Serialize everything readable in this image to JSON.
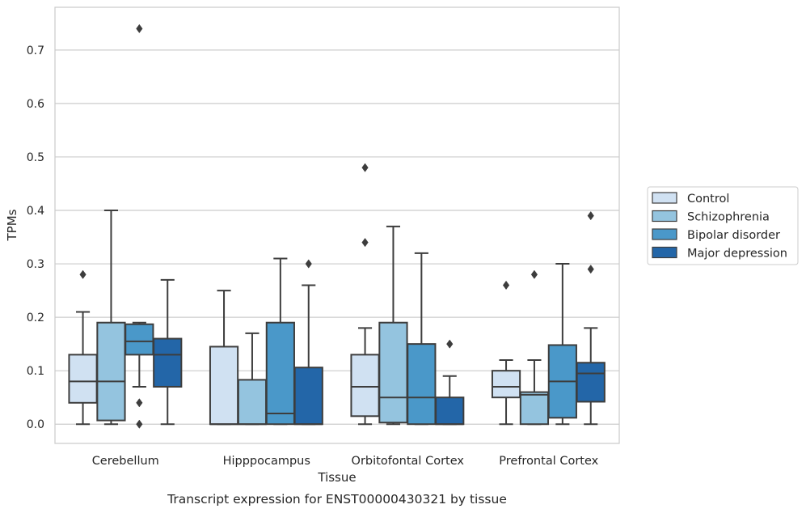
{
  "chart_data": {
    "type": "box",
    "title": "Transcript expression for ENST00000430321 by tissue",
    "xlabel": "Tissue",
    "ylabel": "TPMs",
    "ylim": [
      -0.036,
      0.78
    ],
    "yticks": [
      0.0,
      0.1,
      0.2,
      0.3,
      0.4,
      0.5,
      0.6,
      0.7
    ],
    "ytick_labels": [
      "0.0",
      "0.1",
      "0.2",
      "0.3",
      "0.4",
      "0.5",
      "0.6",
      "0.7"
    ],
    "grid": "horizontal",
    "legend_position": "right",
    "categories": [
      "Cerebellum",
      "Hipppocampus",
      "Orbitofontal Cortex",
      "Prefrontal Cortex"
    ],
    "series": [
      {
        "name": "Control",
        "color": "#d0e1f2",
        "boxes": [
          {
            "q1": 0.04,
            "median": 0.08,
            "q3": 0.13,
            "whisker_low": 0.0,
            "whisker_high": 0.21,
            "outliers": [
              0.28
            ]
          },
          {
            "q1": 0.0,
            "median": 0.0,
            "q3": 0.145,
            "whisker_low": 0.0,
            "whisker_high": 0.25,
            "outliers": []
          },
          {
            "q1": 0.015,
            "median": 0.07,
            "q3": 0.13,
            "whisker_low": 0.0,
            "whisker_high": 0.18,
            "outliers": [
              0.34,
              0.48
            ]
          },
          {
            "q1": 0.05,
            "median": 0.07,
            "q3": 0.1,
            "whisker_low": 0.0,
            "whisker_high": 0.12,
            "outliers": [
              0.26
            ]
          }
        ]
      },
      {
        "name": "Schizophrenia",
        "color": "#94c4df",
        "boxes": [
          {
            "q1": 0.007,
            "median": 0.08,
            "q3": 0.19,
            "whisker_low": 0.0,
            "whisker_high": 0.4,
            "outliers": []
          },
          {
            "q1": 0.0,
            "median": 0.0,
            "q3": 0.083,
            "whisker_low": 0.0,
            "whisker_high": 0.17,
            "outliers": []
          },
          {
            "q1": 0.003,
            "median": 0.05,
            "q3": 0.19,
            "whisker_low": 0.0,
            "whisker_high": 0.37,
            "outliers": []
          },
          {
            "q1": 0.0,
            "median": 0.055,
            "q3": 0.06,
            "whisker_low": 0.0,
            "whisker_high": 0.12,
            "outliers": [
              0.28
            ]
          }
        ]
      },
      {
        "name": "Bipolar disorder",
        "color": "#4a98c9",
        "boxes": [
          {
            "q1": 0.13,
            "median": 0.155,
            "q3": 0.187,
            "whisker_low": 0.07,
            "whisker_high": 0.19,
            "outliers": [
              0.04,
              0.0,
              0.74
            ]
          },
          {
            "q1": 0.0,
            "median": 0.02,
            "q3": 0.19,
            "whisker_low": 0.0,
            "whisker_high": 0.31,
            "outliers": []
          },
          {
            "q1": 0.0,
            "median": 0.05,
            "q3": 0.15,
            "whisker_low": 0.0,
            "whisker_high": 0.32,
            "outliers": []
          },
          {
            "q1": 0.012,
            "median": 0.08,
            "q3": 0.148,
            "whisker_low": 0.0,
            "whisker_high": 0.3,
            "outliers": []
          }
        ]
      },
      {
        "name": "Major depression",
        "color": "#2366a8",
        "boxes": [
          {
            "q1": 0.07,
            "median": 0.13,
            "q3": 0.16,
            "whisker_low": 0.0,
            "whisker_high": 0.27,
            "outliers": []
          },
          {
            "q1": 0.0,
            "median": 0.0,
            "q3": 0.106,
            "whisker_low": 0.0,
            "whisker_high": 0.26,
            "outliers": [
              0.3
            ]
          },
          {
            "q1": 0.0,
            "median": 0.0,
            "q3": 0.05,
            "whisker_low": 0.0,
            "whisker_high": 0.09,
            "outliers": [
              0.15
            ]
          },
          {
            "q1": 0.042,
            "median": 0.095,
            "q3": 0.115,
            "whisker_low": 0.0,
            "whisker_high": 0.18,
            "outliers": [
              0.29,
              0.39
            ]
          }
        ]
      }
    ]
  }
}
